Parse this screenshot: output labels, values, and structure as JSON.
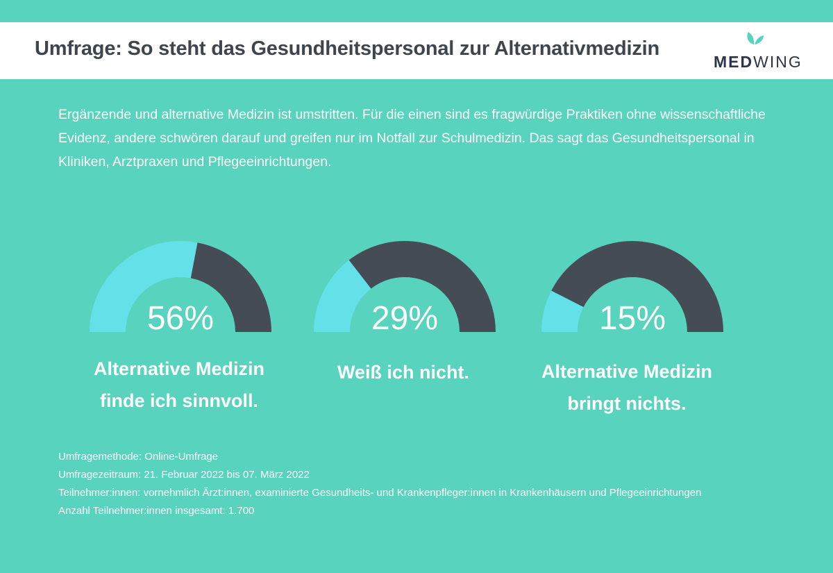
{
  "header": {
    "title": "Umfrage: So steht das Gesundheitspersonal zur Alternativmedizin",
    "logo_bold": "MED",
    "logo_regular": "WING"
  },
  "intro": "Ergänzende und alternative Medizin ist umstritten. Für die einen sind es fragwürdige Praktiken ohne wissenschaftliche Evidenz, andere schwören darauf und greifen nur im Notfall zur Schulmedizin. Das sagt das Gesundheitspersonal in Kliniken, Arztpraxen und Pflegeeinrichtungen.",
  "colors": {
    "background": "#58d3be",
    "fill": "#64e0e8",
    "rest": "#454c56",
    "title": "#3f454d",
    "logo_leaf": "#58d3be"
  },
  "chart_data": [
    {
      "type": "pie",
      "value": 56,
      "label": "56%",
      "caption_lines": [
        "Alternative Medizin",
        "finde ich sinnvoll."
      ]
    },
    {
      "type": "pie",
      "value": 29,
      "label": "29%",
      "caption_lines": [
        "Weiß ich nicht."
      ]
    },
    {
      "type": "pie",
      "value": 15,
      "label": "15%",
      "caption_lines": [
        "Alternative Medizin",
        "bringt nichts."
      ]
    }
  ],
  "footnotes": [
    "Umfragemethode: Online-Umfrage",
    "Umfragezeitraum: 21. Februar 2022 bis 07. März 2022",
    "Teilnehmer:innen: vornehmlich Ärzt:innen, examinierte Gesundheits- und Krankenpfleger:innen in Krankenhäusern und Pflegeeinrichtungen",
    "Anzahl Teilnehmer:innen insgesamt: 1.700"
  ]
}
